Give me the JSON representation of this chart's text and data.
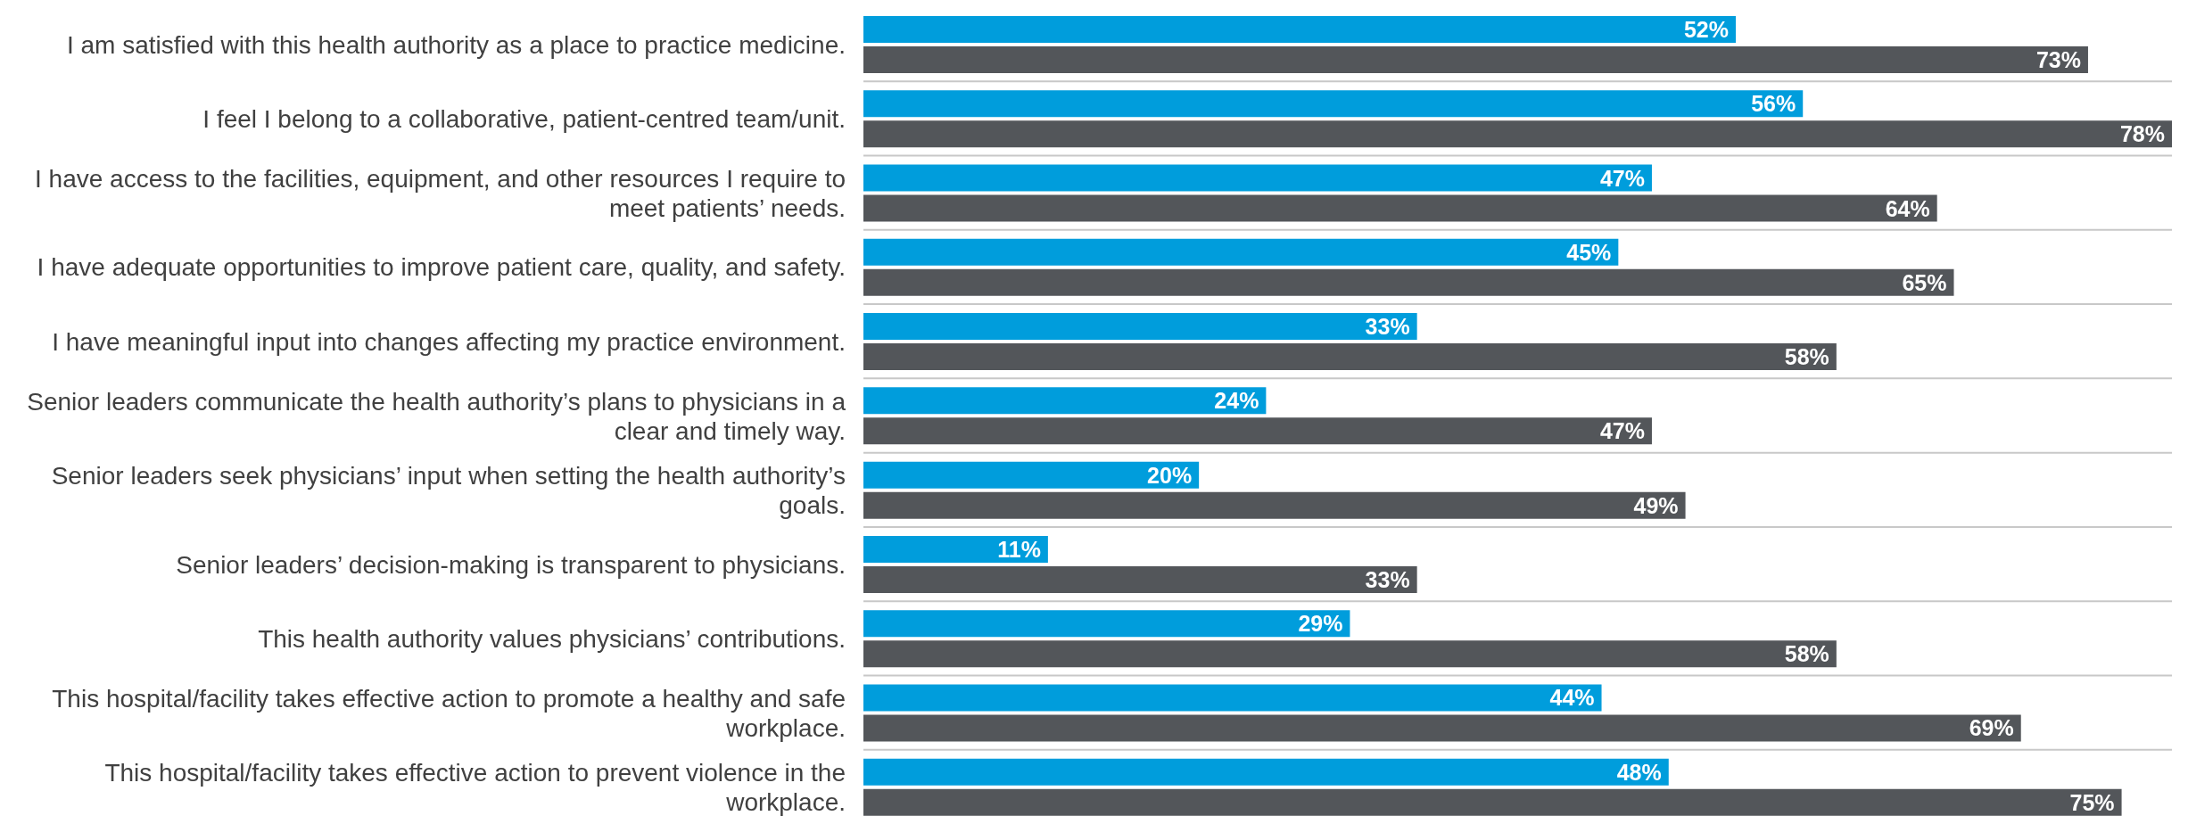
{
  "chart_data": {
    "type": "bar",
    "orientation": "horizontal",
    "categories": [
      "I am satisfied with this health authority as a place to practice medicine.",
      "I feel I belong to a collaborative, patient-centred team/unit.",
      "I have access to the facilities, equipment, and other resources I require to meet patients’ needs.",
      "I have adequate opportunities to improve patient care, quality, and safety.",
      "I have meaningful input into changes affecting my practice environment.",
      "Senior leaders communicate the health authority’s plans to physicians in a clear and timely way.",
      "Senior leaders seek physicians’ input when setting the health authority’s goals.",
      "Senior leaders’ decision-making is transparent to physicians.",
      "This health authority values physicians’ contributions.",
      "This hospital/facility takes effective action to promote a healthy and safe workplace.",
      "This hospital/facility takes effective action to prevent violence in the workplace."
    ],
    "series": [
      {
        "color": "#009ddc",
        "values": [
          52,
          56,
          47,
          45,
          33,
          24,
          20,
          11,
          29,
          44,
          48
        ],
        "value_labels": [
          "52%",
          "56%",
          "47%",
          "45%",
          "33%",
          "24%",
          "20%",
          "11%",
          "29%",
          "44%",
          "48%"
        ]
      },
      {
        "color": "#53565a",
        "values": [
          73,
          78,
          64,
          65,
          58,
          47,
          49,
          33,
          58,
          69,
          75
        ],
        "value_labels": [
          "73%",
          "78%",
          "64%",
          "65%",
          "58%",
          "47%",
          "49%",
          "33%",
          "58%",
          "69%",
          "75%"
        ]
      }
    ],
    "grid": "y",
    "tick_labels": "y"
  }
}
